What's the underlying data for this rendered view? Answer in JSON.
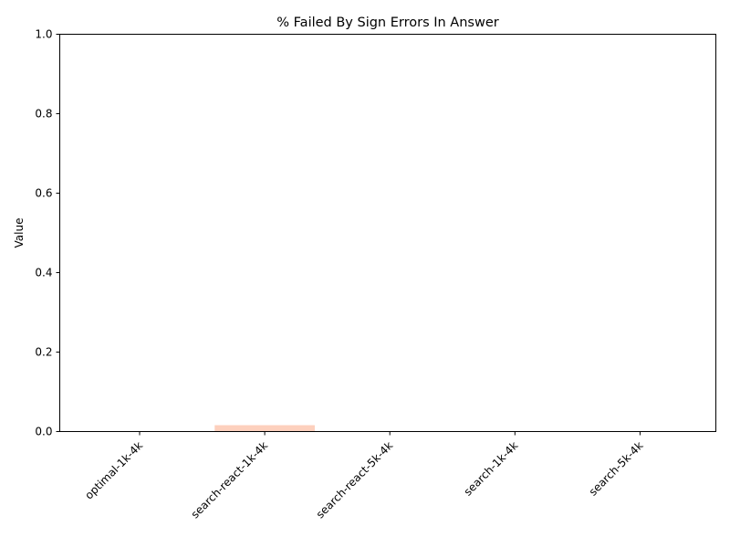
{
  "chart_data": {
    "type": "bar",
    "title": "% Failed By Sign Errors In Answer",
    "xlabel": "",
    "ylabel": "Value",
    "categories": [
      "optimal-1k-4k",
      "search-react-1k-4k",
      "search-react-5k-4k",
      "search-1k-4k",
      "search-5k-4k"
    ],
    "values": [
      0,
      0.016,
      0,
      0,
      0
    ],
    "ylim": [
      0,
      1
    ],
    "yticks": [
      "0.0",
      "0.2",
      "0.4",
      "0.6",
      "0.8",
      "1.0"
    ],
    "grid": false,
    "bar_color": "#fdd0bd"
  }
}
